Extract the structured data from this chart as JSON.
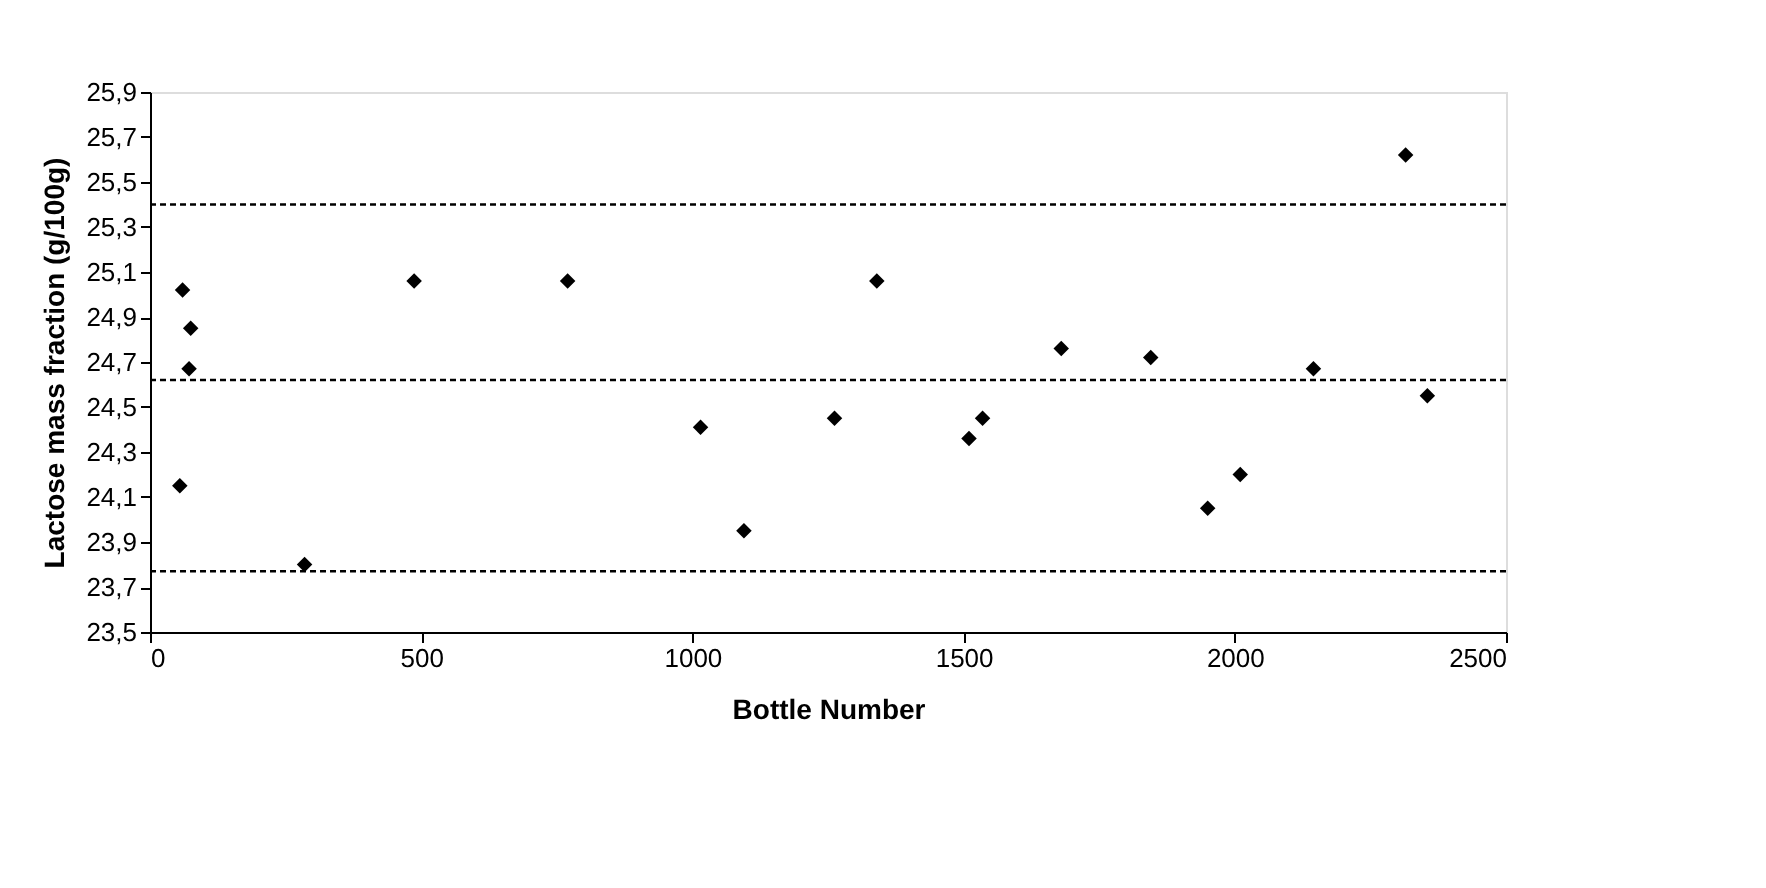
{
  "chart_data": {
    "type": "scatter",
    "xlabel": "Bottle Number",
    "ylabel": "Lactose mass fraction (g/100g)",
    "x": [
      55,
      60,
      75,
      72,
      285,
      487,
      770,
      1015,
      1095,
      1262,
      1340,
      1510,
      1535,
      1680,
      1845,
      1950,
      2010,
      2145,
      2315,
      2355
    ],
    "series": [
      {
        "color": "#000000",
        "values": [
          24.15,
          25.02,
          24.85,
          24.67,
          23.8,
          25.06,
          25.06,
          24.41,
          23.95,
          24.45,
          25.06,
          24.36,
          24.45,
          24.76,
          24.72,
          24.05,
          24.2,
          24.67,
          25.62,
          24.55
        ]
      }
    ],
    "marker": "diamond",
    "grid": false,
    "xlim": [
      0,
      2500
    ],
    "xticks": [
      0,
      500,
      1000,
      1500,
      2000,
      2500
    ],
    "ylim": [
      23.5,
      25.9
    ],
    "yticks": [
      {
        "value": 23.5,
        "label": "23,5"
      },
      {
        "value": 23.7,
        "label": "23,7"
      },
      {
        "value": 23.9,
        "label": "23,9"
      },
      {
        "value": 24.1,
        "label": "24,1"
      },
      {
        "value": 24.3,
        "label": "24,3"
      },
      {
        "value": 24.5,
        "label": "24,5"
      },
      {
        "value": 24.7,
        "label": "24,7"
      },
      {
        "value": 24.9,
        "label": "24,9"
      },
      {
        "value": 25.1,
        "label": "25,1"
      },
      {
        "value": 25.3,
        "label": "25,3"
      },
      {
        "value": 25.5,
        "label": "25,5"
      },
      {
        "value": 25.7,
        "label": "25,7"
      },
      {
        "value": 25.9,
        "label": "25,9"
      }
    ],
    "ref_lines": [
      {
        "axis": "y",
        "value": 25.4,
        "line_style": "dashed",
        "color": "#000000"
      },
      {
        "axis": "y",
        "value": 24.62,
        "line_style": "dashed",
        "color": "#000000"
      },
      {
        "axis": "y",
        "value": 23.77,
        "line_style": "dashed",
        "color": "#000000"
      }
    ]
  }
}
